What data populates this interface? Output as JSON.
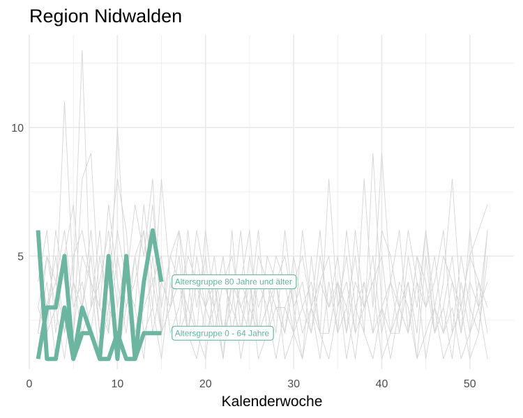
{
  "chart_data": {
    "type": "line",
    "title": "Region Nidwalden",
    "xlabel": "Kalenderwoche",
    "ylabel": "",
    "xlim": [
      0,
      55
    ],
    "ylim": [
      0.6,
      13.6
    ],
    "x_ticks": [
      0,
      10,
      20,
      30,
      40,
      50
    ],
    "y_ticks": [
      5,
      10
    ],
    "grid": true,
    "colors": {
      "highlight": "#6cb5a0",
      "background_lines": "#d4d4d4",
      "grid": "#ebebeb"
    },
    "highlight_series": [
      {
        "name": "Altersgruppe 80 Jahre und älter",
        "x": [
          1,
          2,
          3,
          4,
          5,
          6,
          7,
          8,
          9,
          10,
          11,
          12,
          13,
          14,
          15
        ],
        "y": [
          6,
          1,
          1,
          3,
          1,
          3,
          2,
          1,
          5,
          1,
          5,
          1,
          4,
          6,
          4
        ]
      },
      {
        "name": "Altersgruppe 0 - 64 Jahre",
        "x": [
          1,
          2,
          3,
          4,
          5,
          6,
          7,
          8,
          9,
          10,
          11,
          12,
          13,
          14,
          15
        ],
        "y": [
          1,
          3,
          3,
          5,
          1,
          2,
          2,
          1,
          1,
          2,
          1,
          1,
          2,
          2,
          2
        ]
      }
    ],
    "background_series": [
      {
        "x": [
          1,
          2,
          3,
          4,
          5,
          6,
          7,
          8,
          9,
          10,
          11,
          12,
          13,
          14,
          15,
          16,
          17,
          18,
          19,
          20,
          21,
          22,
          23,
          24,
          25,
          26,
          27,
          28,
          29,
          30,
          31,
          32,
          33,
          34,
          35,
          36,
          37,
          38,
          39,
          40,
          41,
          42,
          43,
          44,
          45,
          46,
          47,
          48,
          49,
          50,
          51,
          52
        ],
        "y": [
          2,
          5,
          3,
          11,
          4,
          13,
          3,
          6,
          2,
          10,
          4,
          7,
          5,
          8,
          2,
          3,
          6,
          2,
          5,
          3,
          4,
          1,
          6,
          2,
          5,
          3,
          4,
          2,
          6,
          3,
          1,
          5,
          2,
          8,
          3,
          4,
          2,
          8,
          3,
          9,
          4,
          2,
          5,
          3,
          6,
          2,
          4,
          8,
          3,
          5,
          6,
          7
        ]
      },
      {
        "x": [
          1,
          2,
          3,
          4,
          5,
          6,
          7,
          8,
          9,
          10,
          11,
          12,
          13,
          14,
          15,
          16,
          17,
          18,
          19,
          20,
          21,
          22,
          23,
          24,
          25,
          26,
          27,
          28,
          29,
          30,
          31,
          32,
          33,
          34,
          35,
          36,
          37,
          38,
          39,
          40,
          41,
          42,
          43,
          44,
          45,
          46,
          47,
          48,
          49,
          50,
          51,
          52
        ],
        "y": [
          3,
          2,
          6,
          4,
          2,
          8,
          9,
          3,
          7,
          4,
          2,
          5,
          6,
          3,
          8,
          4,
          2,
          6,
          3,
          5,
          2,
          4,
          3,
          6,
          2,
          5,
          4,
          3,
          2,
          4,
          5,
          3,
          6,
          2,
          4,
          3,
          5,
          2,
          9,
          3,
          4,
          6,
          2,
          5,
          3,
          4,
          6,
          2,
          5,
          3,
          2,
          6
        ]
      },
      {
        "x": [
          1,
          2,
          3,
          4,
          5,
          6,
          7,
          8,
          9,
          10,
          11,
          12,
          13,
          14,
          15,
          16,
          17,
          18,
          19,
          20,
          21,
          22,
          23,
          24,
          25,
          26,
          27,
          28,
          29,
          30,
          31,
          32,
          33,
          34,
          35,
          36,
          37,
          38,
          39,
          40,
          41,
          42,
          43,
          44,
          45,
          46,
          47,
          48,
          49,
          50,
          51,
          52
        ],
        "y": [
          4,
          6,
          2,
          5,
          7,
          3,
          6,
          2,
          5,
          8,
          6,
          2,
          4,
          7,
          3,
          5,
          6,
          4,
          2,
          6,
          3,
          5,
          2,
          4,
          6,
          2,
          3,
          5,
          4,
          2,
          6,
          3,
          4,
          5,
          2,
          6,
          3,
          4,
          2,
          6,
          5,
          3,
          4,
          2,
          6,
          3,
          5,
          4,
          2,
          6,
          3,
          4
        ]
      },
      {
        "x": [
          1,
          2,
          3,
          4,
          5,
          6,
          7,
          8,
          9,
          10,
          11,
          12,
          13,
          14,
          15,
          16,
          17,
          18,
          19,
          20,
          21,
          22,
          23,
          24,
          25,
          26,
          27,
          28,
          29,
          30,
          31,
          32,
          33,
          34,
          35,
          36,
          37,
          38,
          39,
          40,
          41,
          42,
          43,
          44,
          45,
          46,
          47,
          48,
          49,
          50,
          51,
          52
        ],
        "y": [
          2,
          4,
          1,
          3,
          2,
          5,
          4,
          1,
          3,
          2,
          4,
          3,
          1,
          5,
          2,
          3,
          4,
          2,
          1,
          3,
          5,
          2,
          4,
          1,
          3,
          2,
          5,
          4,
          1,
          2,
          3,
          4,
          2,
          1,
          3,
          5,
          2,
          3,
          4,
          1,
          2,
          4,
          3,
          1,
          5,
          2,
          3,
          1,
          4,
          2,
          3,
          1
        ]
      },
      {
        "x": [
          1,
          2,
          3,
          4,
          5,
          6,
          7,
          8,
          9,
          10,
          11,
          12,
          13,
          14,
          15,
          16,
          17,
          18,
          19,
          20,
          21,
          22,
          23,
          24,
          25,
          26,
          27,
          28,
          29,
          30,
          31,
          32,
          33,
          34,
          35,
          36,
          37,
          38,
          39,
          40,
          41,
          42,
          43,
          44,
          45,
          46,
          47,
          48,
          49,
          50,
          51,
          52
        ],
        "y": [
          5,
          3,
          4,
          6,
          3,
          4,
          2,
          5,
          3,
          6,
          4,
          3,
          7,
          4,
          2,
          5,
          4,
          3,
          6,
          4,
          3,
          5,
          2,
          4,
          3,
          6,
          2,
          4,
          5,
          3,
          4,
          2,
          5,
          3,
          4,
          2,
          6,
          3,
          4,
          5,
          2,
          3,
          6,
          4,
          3,
          5,
          2,
          4,
          3,
          5,
          4,
          2
        ]
      },
      {
        "x": [
          1,
          2,
          3,
          4,
          5,
          6,
          7,
          8,
          9,
          10,
          11,
          12,
          13,
          14,
          15,
          16,
          17,
          18,
          19,
          20,
          21,
          22,
          23,
          24,
          25,
          26,
          27,
          28,
          29,
          30,
          31,
          32,
          33,
          34,
          35,
          36,
          37,
          38,
          39,
          40,
          41,
          42,
          43,
          44,
          45,
          46,
          47,
          48,
          49,
          50,
          51,
          52
        ],
        "y": [
          1,
          3,
          5,
          2,
          4,
          2,
          3,
          4,
          6,
          3,
          5,
          2,
          3,
          4,
          5,
          2,
          3,
          5,
          4,
          2,
          3,
          1,
          4,
          3,
          2,
          4,
          3,
          1,
          3,
          4,
          2,
          3,
          1,
          4,
          2,
          3,
          1,
          4,
          2,
          3,
          1,
          3,
          2,
          4,
          1,
          3,
          2,
          3,
          1,
          2,
          4,
          3
        ]
      },
      {
        "x": [
          1,
          2,
          3,
          4,
          5,
          6,
          7,
          8,
          9,
          10,
          11,
          12,
          13,
          14,
          15,
          16,
          17,
          18,
          19,
          20,
          21,
          22,
          23,
          24,
          25,
          26,
          27,
          28,
          29,
          30,
          31,
          32,
          33,
          34,
          35,
          36,
          37,
          38,
          39,
          40,
          41,
          42,
          43,
          44,
          45,
          46,
          47,
          48,
          49,
          50,
          51,
          52
        ],
        "y": [
          2,
          2,
          3,
          1,
          4,
          3,
          5,
          2,
          4,
          1,
          3,
          5,
          2,
          3,
          1,
          4,
          2,
          3,
          2,
          1,
          4,
          2,
          3,
          2,
          4,
          1,
          2,
          3,
          3,
          2,
          1,
          3,
          2,
          2,
          4,
          1,
          3,
          2,
          1,
          3,
          2,
          2,
          4,
          1,
          2,
          3,
          1,
          2,
          3,
          1,
          2,
          5
        ]
      },
      {
        "x": [
          1,
          2,
          3,
          4,
          5,
          6,
          7,
          8,
          9,
          10,
          11,
          12,
          13,
          14,
          15,
          16,
          17,
          18,
          19,
          20,
          21,
          22,
          23,
          24,
          25,
          26,
          27,
          28,
          29,
          30,
          31,
          32,
          33,
          34,
          35,
          36,
          37,
          38,
          39,
          40,
          41,
          42,
          43,
          44,
          45,
          46,
          47,
          48,
          49,
          50,
          51,
          52
        ],
        "y": [
          3,
          5,
          4,
          2,
          5,
          6,
          4,
          3,
          2,
          5,
          3,
          4,
          6,
          2,
          4,
          3,
          5,
          2,
          4,
          3,
          2,
          4,
          5,
          3,
          4,
          2,
          3,
          4,
          2,
          5,
          3,
          2,
          4,
          3,
          5,
          2,
          4,
          3,
          5,
          2,
          4,
          3,
          2,
          5,
          4,
          2,
          3,
          5,
          2,
          4,
          3,
          6
        ]
      }
    ],
    "labels": [
      {
        "text": "Altersgruppe 80 Jahre und älter",
        "x": 16.2,
        "y": 4
      },
      {
        "text": "Altersgruppe 0 - 64 Jahre",
        "x": 16.2,
        "y": 2
      }
    ]
  }
}
